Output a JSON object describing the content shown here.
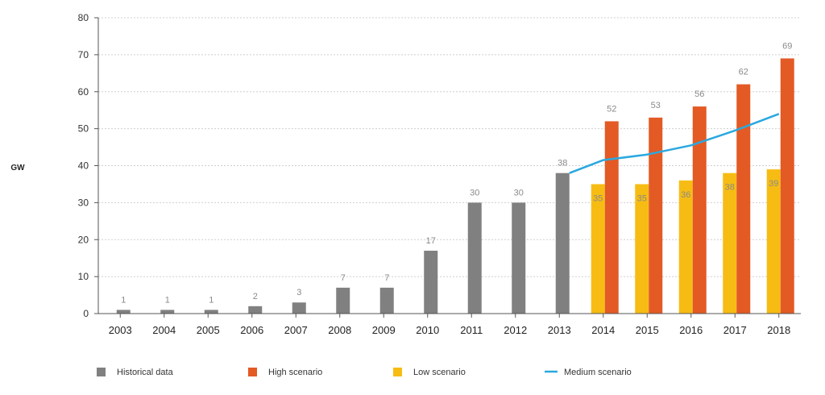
{
  "chart_data": {
    "type": "bar",
    "ylabel": "GW",
    "ylim": [
      0,
      80
    ],
    "yticks": [
      0,
      10,
      20,
      30,
      40,
      50,
      60,
      70,
      80
    ],
    "grid": true,
    "legend_position": "bottom",
    "categories": [
      "2003",
      "2004",
      "2005",
      "2006",
      "2007",
      "2008",
      "2009",
      "2010",
      "2011",
      "2012",
      "2013",
      "2014",
      "2015",
      "2016",
      "2017",
      "2018"
    ],
    "series": [
      {
        "name": "Historical data",
        "kind": "bar",
        "color": "#808080",
        "values": [
          1,
          1,
          1,
          2,
          3,
          7,
          7,
          17,
          30,
          30,
          38,
          null,
          null,
          null,
          null,
          null
        ],
        "labels": [
          "1",
          "1",
          "1",
          "2",
          "3",
          "7",
          "7",
          "17",
          "30",
          "30",
          "38",
          "",
          "",
          "",
          "",
          ""
        ]
      },
      {
        "name": "High scenario",
        "kind": "bar",
        "color": "#e35a25",
        "values": [
          null,
          null,
          null,
          null,
          null,
          null,
          null,
          null,
          null,
          null,
          null,
          52,
          53,
          56,
          62,
          69
        ],
        "labels": [
          "",
          "",
          "",
          "",
          "",
          "",
          "",
          "",
          "",
          "",
          "",
          "52",
          "53",
          "56",
          "62",
          "69"
        ]
      },
      {
        "name": "Low scenario",
        "kind": "bar",
        "color": "#f7bc13",
        "values": [
          null,
          null,
          null,
          null,
          null,
          null,
          null,
          null,
          null,
          null,
          null,
          35,
          35,
          36,
          38,
          39
        ],
        "labels": [
          "",
          "",
          "",
          "",
          "",
          "",
          "",
          "",
          "",
          "",
          "",
          "35",
          "35",
          "36",
          "38",
          "39"
        ]
      },
      {
        "name": "Medium scenario",
        "kind": "line",
        "color": "#2aa8df",
        "values": [
          null,
          null,
          null,
          null,
          null,
          null,
          null,
          null,
          null,
          null,
          38,
          41.5,
          43,
          45.5,
          49.5,
          54
        ]
      }
    ]
  }
}
